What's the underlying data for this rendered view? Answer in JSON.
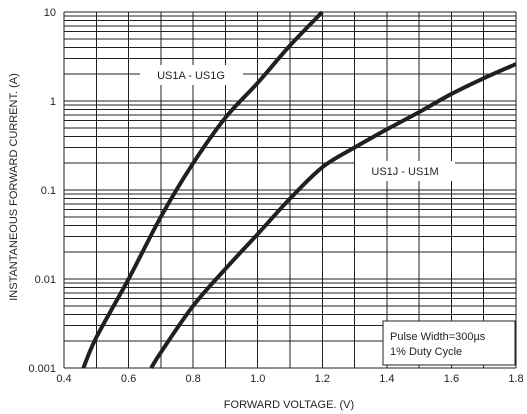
{
  "chart_data": {
    "type": "line",
    "title": "",
    "xlabel": "FORWARD VOLTAGE. (V)",
    "ylabel": "INSTANTANEOUS FORWARD CURRENT. (A)",
    "xlim": [
      0.4,
      1.8
    ],
    "ylim": [
      0.001,
      10
    ],
    "yscale": "log",
    "grid": true,
    "x_ticks": [
      "0.4",
      "0.6",
      "0.8",
      "1.0",
      "1.2",
      "1.4",
      "1.6",
      "1.8"
    ],
    "y_ticks": [
      "0.001",
      "0.01",
      "0.1",
      "1",
      "10"
    ],
    "series": [
      {
        "name": "US1A - US1G",
        "x": [
          0.46,
          0.5,
          0.6,
          0.7,
          0.8,
          0.9,
          1.0,
          1.1,
          1.2
        ],
        "y": [
          0.001,
          0.0022,
          0.01,
          0.05,
          0.2,
          0.65,
          1.6,
          4.2,
          10
        ]
      },
      {
        "name": "US1J - US1M",
        "x": [
          0.67,
          0.7,
          0.8,
          0.9,
          1.0,
          1.1,
          1.2,
          1.3,
          1.4,
          1.5,
          1.6,
          1.7,
          1.8
        ],
        "y": [
          0.001,
          0.0015,
          0.005,
          0.013,
          0.032,
          0.08,
          0.18,
          0.3,
          0.48,
          0.75,
          1.2,
          1.8,
          2.6
        ]
      }
    ],
    "annotations": [
      "Pulse Width=300µs",
      "1% Duty Cycle"
    ],
    "colors": {
      "line": "#231f20",
      "background": "#ffffff"
    }
  }
}
